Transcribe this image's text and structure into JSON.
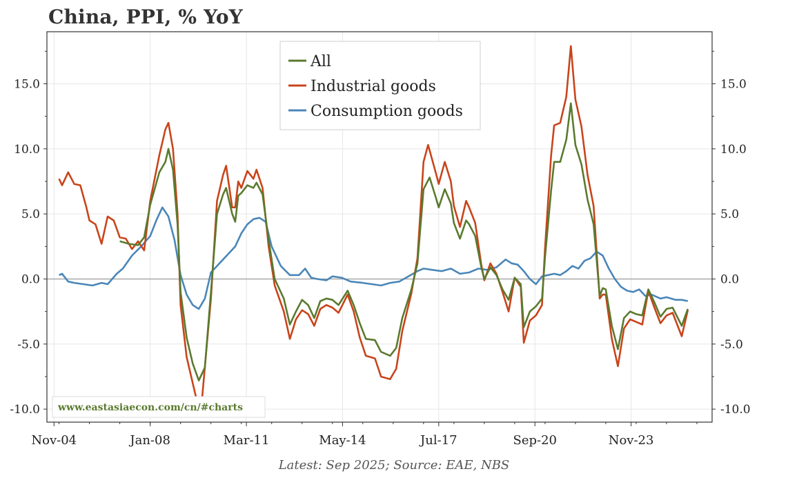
{
  "title": "China, PPI, % YoY",
  "footer": "Latest: Sep 2025; Source: EAE, NBS",
  "watermark": "www.eastasiaecon.com/cn/#charts",
  "colors": {
    "all": "#5a7a2e",
    "industrial": "#c8441a",
    "consumption": "#4a86b8",
    "grid": "#e6e6e6",
    "zero": "#9a9a9a"
  },
  "chart_data": {
    "type": "line",
    "title": "China, PPI, % YoY",
    "xlabel": "",
    "ylabel": "",
    "ylim": [
      -11,
      19
    ],
    "xlim": [
      2004.6,
      2026.5
    ],
    "x_ticks": [
      {
        "label": "Nov-04",
        "x": 2004.833
      },
      {
        "label": "Jan-08",
        "x": 2008.0
      },
      {
        "label": "Mar-11",
        "x": 2011.167
      },
      {
        "label": "May-14",
        "x": 2014.333
      },
      {
        "label": "Jul-17",
        "x": 2017.5
      },
      {
        "label": "Sep-20",
        "x": 2020.667
      },
      {
        "label": "Nov-23",
        "x": 2023.833
      }
    ],
    "y_ticks": [
      "-10.0",
      "-5.0",
      "0.0",
      "5.0",
      "10.0",
      "15.0"
    ],
    "legend": {
      "position": "top-center",
      "entries": [
        "All",
        "Industrial goods",
        "Consumption goods"
      ]
    },
    "series": [
      {
        "name": "All",
        "key": "all",
        "points": [
          [
            2007.0,
            2.9
          ],
          [
            2007.3,
            2.7
          ],
          [
            2007.6,
            2.6
          ],
          [
            2007.8,
            3.2
          ],
          [
            2008.0,
            5.7
          ],
          [
            2008.3,
            8.2
          ],
          [
            2008.5,
            9.0
          ],
          [
            2008.6,
            10.0
          ],
          [
            2008.75,
            8.4
          ],
          [
            2008.9,
            4.2
          ],
          [
            2009.0,
            -1.0
          ],
          [
            2009.2,
            -4.5
          ],
          [
            2009.4,
            -6.5
          ],
          [
            2009.6,
            -7.8
          ],
          [
            2009.8,
            -6.8
          ],
          [
            2010.0,
            -1.0
          ],
          [
            2010.2,
            5.0
          ],
          [
            2010.4,
            6.5
          ],
          [
            2010.5,
            7.0
          ],
          [
            2010.7,
            5.0
          ],
          [
            2010.8,
            4.4
          ],
          [
            2010.9,
            6.4
          ],
          [
            2011.0,
            6.6
          ],
          [
            2011.2,
            7.2
          ],
          [
            2011.4,
            7.0
          ],
          [
            2011.5,
            7.4
          ],
          [
            2011.7,
            6.5
          ],
          [
            2011.9,
            3.0
          ],
          [
            2012.1,
            0.0
          ],
          [
            2012.4,
            -1.5
          ],
          [
            2012.6,
            -3.5
          ],
          [
            2012.8,
            -2.5
          ],
          [
            2013.0,
            -1.6
          ],
          [
            2013.2,
            -2.0
          ],
          [
            2013.4,
            -3.0
          ],
          [
            2013.6,
            -1.7
          ],
          [
            2013.8,
            -1.5
          ],
          [
            2014.0,
            -1.6
          ],
          [
            2014.2,
            -2.0
          ],
          [
            2014.5,
            -0.9
          ],
          [
            2014.7,
            -2.0
          ],
          [
            2014.9,
            -3.4
          ],
          [
            2015.1,
            -4.6
          ],
          [
            2015.4,
            -4.7
          ],
          [
            2015.6,
            -5.6
          ],
          [
            2015.9,
            -5.9
          ],
          [
            2016.1,
            -5.3
          ],
          [
            2016.3,
            -3.0
          ],
          [
            2016.6,
            -0.8
          ],
          [
            2016.8,
            1.2
          ],
          [
            2017.0,
            6.9
          ],
          [
            2017.2,
            7.8
          ],
          [
            2017.4,
            6.3
          ],
          [
            2017.5,
            5.5
          ],
          [
            2017.7,
            6.9
          ],
          [
            2017.9,
            5.8
          ],
          [
            2018.0,
            4.3
          ],
          [
            2018.2,
            3.1
          ],
          [
            2018.4,
            4.5
          ],
          [
            2018.5,
            4.2
          ],
          [
            2018.7,
            3.3
          ],
          [
            2018.9,
            0.9
          ],
          [
            2019.0,
            0.0
          ],
          [
            2019.2,
            0.9
          ],
          [
            2019.4,
            0.3
          ],
          [
            2019.6,
            -0.8
          ],
          [
            2019.8,
            -1.6
          ],
          [
            2020.0,
            0.1
          ],
          [
            2020.2,
            -0.4
          ],
          [
            2020.3,
            -3.7
          ],
          [
            2020.5,
            -2.5
          ],
          [
            2020.7,
            -2.1
          ],
          [
            2020.9,
            -1.5
          ],
          [
            2021.0,
            1.7
          ],
          [
            2021.2,
            6.8
          ],
          [
            2021.3,
            9.0
          ],
          [
            2021.5,
            9.0
          ],
          [
            2021.7,
            10.7
          ],
          [
            2021.85,
            13.5
          ],
          [
            2022.0,
            10.3
          ],
          [
            2022.2,
            8.8
          ],
          [
            2022.4,
            6.1
          ],
          [
            2022.6,
            4.2
          ],
          [
            2022.8,
            -1.3
          ],
          [
            2022.9,
            -0.7
          ],
          [
            2023.0,
            -0.8
          ],
          [
            2023.2,
            -3.6
          ],
          [
            2023.4,
            -5.4
          ],
          [
            2023.6,
            -3.0
          ],
          [
            2023.8,
            -2.5
          ],
          [
            2024.0,
            -2.7
          ],
          [
            2024.2,
            -2.8
          ],
          [
            2024.4,
            -0.8
          ],
          [
            2024.6,
            -1.8
          ],
          [
            2024.8,
            -2.9
          ],
          [
            2025.0,
            -2.3
          ],
          [
            2025.2,
            -2.2
          ],
          [
            2025.5,
            -3.6
          ],
          [
            2025.7,
            -2.3
          ]
        ]
      },
      {
        "name": "Industrial goods",
        "key": "industrial",
        "points": [
          [
            2005.0,
            7.7
          ],
          [
            2005.1,
            7.2
          ],
          [
            2005.3,
            8.2
          ],
          [
            2005.5,
            7.3
          ],
          [
            2005.7,
            7.2
          ],
          [
            2005.9,
            5.5
          ],
          [
            2006.0,
            4.5
          ],
          [
            2006.2,
            4.2
          ],
          [
            2006.4,
            2.7
          ],
          [
            2006.6,
            4.8
          ],
          [
            2006.8,
            4.5
          ],
          [
            2007.0,
            3.2
          ],
          [
            2007.2,
            3.1
          ],
          [
            2007.4,
            2.3
          ],
          [
            2007.6,
            2.9
          ],
          [
            2007.8,
            2.2
          ],
          [
            2008.0,
            6.0
          ],
          [
            2008.3,
            9.5
          ],
          [
            2008.5,
            11.5
          ],
          [
            2008.6,
            12.0
          ],
          [
            2008.75,
            10.0
          ],
          [
            2008.9,
            5.0
          ],
          [
            2009.0,
            -2.0
          ],
          [
            2009.2,
            -6.0
          ],
          [
            2009.4,
            -8.0
          ],
          [
            2009.6,
            -10.0
          ],
          [
            2009.7,
            -9.4
          ],
          [
            2010.0,
            -1.5
          ],
          [
            2010.2,
            6.0
          ],
          [
            2010.4,
            8.0
          ],
          [
            2010.5,
            8.7
          ],
          [
            2010.7,
            5.5
          ],
          [
            2010.8,
            5.5
          ],
          [
            2010.9,
            7.5
          ],
          [
            2011.0,
            7.0
          ],
          [
            2011.2,
            8.3
          ],
          [
            2011.4,
            7.7
          ],
          [
            2011.5,
            8.4
          ],
          [
            2011.7,
            7.0
          ],
          [
            2011.9,
            2.5
          ],
          [
            2012.1,
            -0.5
          ],
          [
            2012.4,
            -2.5
          ],
          [
            2012.6,
            -4.6
          ],
          [
            2012.8,
            -3.1
          ],
          [
            2013.0,
            -2.4
          ],
          [
            2013.2,
            -2.7
          ],
          [
            2013.4,
            -3.6
          ],
          [
            2013.6,
            -2.3
          ],
          [
            2013.8,
            -2.0
          ],
          [
            2014.0,
            -2.2
          ],
          [
            2014.2,
            -2.6
          ],
          [
            2014.5,
            -1.2
          ],
          [
            2014.7,
            -2.5
          ],
          [
            2014.9,
            -4.5
          ],
          [
            2015.1,
            -5.9
          ],
          [
            2015.4,
            -6.1
          ],
          [
            2015.6,
            -7.5
          ],
          [
            2015.9,
            -7.7
          ],
          [
            2016.1,
            -6.9
          ],
          [
            2016.3,
            -4.0
          ],
          [
            2016.6,
            -1.1
          ],
          [
            2016.8,
            1.6
          ],
          [
            2017.0,
            9.0
          ],
          [
            2017.15,
            10.3
          ],
          [
            2017.4,
            8.2
          ],
          [
            2017.5,
            7.3
          ],
          [
            2017.7,
            9.0
          ],
          [
            2017.9,
            7.5
          ],
          [
            2018.0,
            5.6
          ],
          [
            2018.2,
            4.0
          ],
          [
            2018.4,
            6.0
          ],
          [
            2018.5,
            5.5
          ],
          [
            2018.7,
            4.3
          ],
          [
            2018.9,
            1.1
          ],
          [
            2019.0,
            -0.1
          ],
          [
            2019.2,
            1.2
          ],
          [
            2019.4,
            0.4
          ],
          [
            2019.6,
            -1.0
          ],
          [
            2019.8,
            -2.5
          ],
          [
            2020.0,
            0.1
          ],
          [
            2020.2,
            -0.6
          ],
          [
            2020.3,
            -4.9
          ],
          [
            2020.5,
            -3.2
          ],
          [
            2020.7,
            -2.8
          ],
          [
            2020.9,
            -2.0
          ],
          [
            2021.0,
            2.4
          ],
          [
            2021.2,
            9.5
          ],
          [
            2021.3,
            11.8
          ],
          [
            2021.5,
            12.0
          ],
          [
            2021.7,
            14.0
          ],
          [
            2021.85,
            17.9
          ],
          [
            2022.0,
            13.8
          ],
          [
            2022.2,
            11.7
          ],
          [
            2022.4,
            8.0
          ],
          [
            2022.6,
            5.6
          ],
          [
            2022.8,
            -1.5
          ],
          [
            2022.9,
            -1.2
          ],
          [
            2023.0,
            -1.2
          ],
          [
            2023.2,
            -4.6
          ],
          [
            2023.4,
            -6.7
          ],
          [
            2023.6,
            -3.8
          ],
          [
            2023.8,
            -3.1
          ],
          [
            2024.0,
            -3.3
          ],
          [
            2024.2,
            -3.5
          ],
          [
            2024.4,
            -0.9
          ],
          [
            2024.6,
            -2.2
          ],
          [
            2024.8,
            -3.4
          ],
          [
            2025.0,
            -2.8
          ],
          [
            2025.2,
            -2.6
          ],
          [
            2025.5,
            -4.4
          ],
          [
            2025.7,
            -2.4
          ]
        ]
      },
      {
        "name": "Consumption goods",
        "key": "consumption",
        "points": [
          [
            2005.0,
            0.3
          ],
          [
            2005.1,
            0.4
          ],
          [
            2005.3,
            -0.2
          ],
          [
            2005.5,
            -0.3
          ],
          [
            2005.8,
            -0.4
          ],
          [
            2006.1,
            -0.5
          ],
          [
            2006.4,
            -0.3
          ],
          [
            2006.6,
            -0.4
          ],
          [
            2006.9,
            0.4
          ],
          [
            2007.1,
            0.8
          ],
          [
            2007.4,
            1.8
          ],
          [
            2007.7,
            2.5
          ],
          [
            2008.0,
            3.3
          ],
          [
            2008.2,
            4.5
          ],
          [
            2008.4,
            5.5
          ],
          [
            2008.6,
            4.8
          ],
          [
            2008.8,
            3.0
          ],
          [
            2009.0,
            0.3
          ],
          [
            2009.2,
            -1.2
          ],
          [
            2009.4,
            -2.0
          ],
          [
            2009.6,
            -2.3
          ],
          [
            2009.8,
            -1.5
          ],
          [
            2010.0,
            0.5
          ],
          [
            2010.2,
            1.0
          ],
          [
            2010.4,
            1.5
          ],
          [
            2010.6,
            2.0
          ],
          [
            2010.8,
            2.5
          ],
          [
            2011.0,
            3.5
          ],
          [
            2011.2,
            4.2
          ],
          [
            2011.4,
            4.6
          ],
          [
            2011.6,
            4.7
          ],
          [
            2011.8,
            4.4
          ],
          [
            2012.0,
            2.5
          ],
          [
            2012.3,
            1.0
          ],
          [
            2012.6,
            0.3
          ],
          [
            2012.9,
            0.3
          ],
          [
            2013.1,
            0.8
          ],
          [
            2013.3,
            0.1
          ],
          [
            2013.5,
            0.0
          ],
          [
            2013.8,
            -0.1
          ],
          [
            2014.0,
            0.2
          ],
          [
            2014.3,
            0.1
          ],
          [
            2014.6,
            -0.2
          ],
          [
            2015.0,
            -0.3
          ],
          [
            2015.3,
            -0.4
          ],
          [
            2015.6,
            -0.5
          ],
          [
            2015.9,
            -0.3
          ],
          [
            2016.2,
            -0.2
          ],
          [
            2016.5,
            0.2
          ],
          [
            2016.8,
            0.6
          ],
          [
            2017.0,
            0.8
          ],
          [
            2017.3,
            0.7
          ],
          [
            2017.6,
            0.6
          ],
          [
            2017.9,
            0.8
          ],
          [
            2018.2,
            0.4
          ],
          [
            2018.5,
            0.5
          ],
          [
            2018.8,
            0.8
          ],
          [
            2019.1,
            0.7
          ],
          [
            2019.4,
            0.9
          ],
          [
            2019.7,
            1.5
          ],
          [
            2019.9,
            1.2
          ],
          [
            2020.1,
            1.1
          ],
          [
            2020.3,
            0.6
          ],
          [
            2020.5,
            0.0
          ],
          [
            2020.7,
            -0.4
          ],
          [
            2020.9,
            0.2
          ],
          [
            2021.1,
            0.3
          ],
          [
            2021.3,
            0.4
          ],
          [
            2021.5,
            0.3
          ],
          [
            2021.7,
            0.6
          ],
          [
            2021.9,
            1.0
          ],
          [
            2022.1,
            0.8
          ],
          [
            2022.3,
            1.4
          ],
          [
            2022.5,
            1.6
          ],
          [
            2022.7,
            2.1
          ],
          [
            2022.9,
            1.8
          ],
          [
            2023.1,
            0.8
          ],
          [
            2023.3,
            0.0
          ],
          [
            2023.5,
            -0.6
          ],
          [
            2023.7,
            -0.9
          ],
          [
            2023.9,
            -1.0
          ],
          [
            2024.1,
            -0.8
          ],
          [
            2024.3,
            -1.3
          ],
          [
            2024.5,
            -1.2
          ],
          [
            2024.8,
            -1.5
          ],
          [
            2025.0,
            -1.4
          ],
          [
            2025.3,
            -1.6
          ],
          [
            2025.5,
            -1.6
          ],
          [
            2025.7,
            -1.7
          ]
        ]
      }
    ]
  }
}
